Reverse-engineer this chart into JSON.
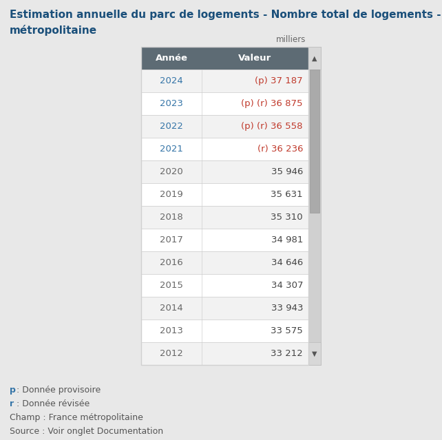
{
  "title_line1": "Estimation annuelle du parc de logements - Nombre total de logements - France",
  "title_line2": "métropolitaine",
  "unit_label": "milliers",
  "header": [
    "Année",
    "Valeur"
  ],
  "rows": [
    [
      "2024",
      "(p) 37 187",
      true,
      true
    ],
    [
      "2023",
      "(p) (r) 36 875",
      true,
      true
    ],
    [
      "2022",
      "(p) (r) 36 558",
      true,
      true
    ],
    [
      "2021",
      "(r) 36 236",
      true,
      true
    ],
    [
      "2020",
      "35 946",
      false,
      false
    ],
    [
      "2019",
      "35 631",
      false,
      false
    ],
    [
      "2018",
      "35 310",
      false,
      false
    ],
    [
      "2017",
      "34 981",
      false,
      false
    ],
    [
      "2016",
      "34 646",
      false,
      false
    ],
    [
      "2015",
      "34 307",
      false,
      false
    ],
    [
      "2014",
      "33 943",
      false,
      false
    ],
    [
      "2013",
      "33 575",
      false,
      false
    ],
    [
      "2012",
      "33 212",
      false,
      false
    ]
  ],
  "footer_lines": [
    [
      "p",
      ": Donnée provisoire"
    ],
    [
      "r",
      ": Donnée révisée"
    ],
    [
      "",
      "Champ : France métropolitaine"
    ],
    [
      "",
      "Source : Voir onglet Documentation"
    ]
  ],
  "bg_color": "#e8e8e8",
  "table_bg": "#ffffff",
  "row_alt_bg": "#f2f2f2",
  "header_bg": "#5d6b74",
  "header_text_color": "#ffffff",
  "cell_border_color": "#d0d0d0",
  "year_color_special": "#3474a7",
  "year_color_normal": "#666666",
  "value_color_special": "#c0392b",
  "value_color_normal": "#444444",
  "scroll_bar_bg": "#d0d0d0",
  "scroll_thumb_color": "#aaaaaa",
  "title_color": "#1a4f7a",
  "footer_key_color": "#3474a7",
  "footer_text_color": "#555555"
}
